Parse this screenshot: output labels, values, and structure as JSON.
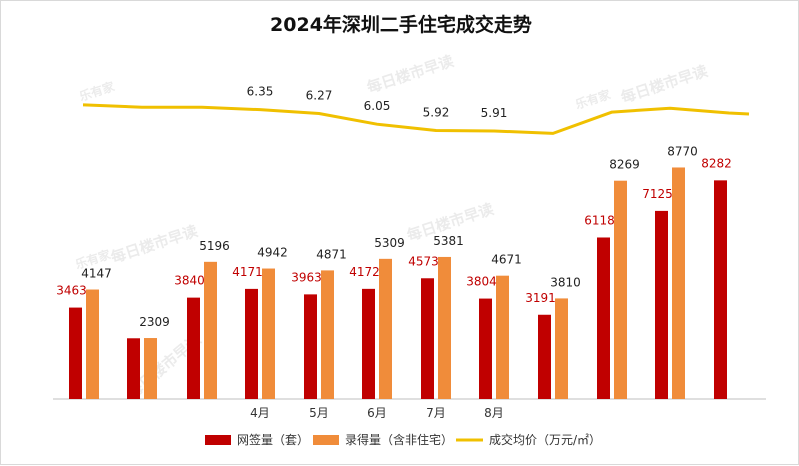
{
  "chart_data": {
    "type": "bar",
    "title": "2024年深圳二手住宅成交走势",
    "categories": [
      "",
      "",
      "",
      "4月",
      "5月",
      "6月",
      "7月",
      "8月",
      "",
      "",
      "",
      ""
    ],
    "series": [
      {
        "name": "网签量（套）",
        "type": "bar",
        "color": "#c00000",
        "values": [
          3463,
          2300,
          3840,
          4171,
          3963,
          4172,
          4573,
          3804,
          3191,
          6118,
          7125,
          8282
        ]
      },
      {
        "name": "录得量（含非住宅）",
        "type": "bar",
        "color": "#f08c3a",
        "values": [
          4147,
          2309,
          5196,
          4942,
          4871,
          5309,
          5381,
          4671,
          3810,
          8269,
          8770,
          null
        ]
      },
      {
        "name": "成交均价（万元/㎡）",
        "type": "line",
        "color": "#f0c000",
        "values": [
          6.45,
          6.4,
          6.4,
          6.35,
          6.27,
          6.05,
          5.92,
          5.91,
          5.86,
          6.3,
          6.38,
          6.28
        ]
      }
    ],
    "bar_labels_series1": [
      "3463",
      "",
      "3840",
      "4171",
      "3963",
      "4172",
      "4573",
      "3804",
      "3191",
      "6118",
      "7125",
      "8282"
    ],
    "bar_labels_series2": [
      "4147",
      "2309",
      "5196",
      "4942",
      "4871",
      "5309",
      "5381",
      "4671",
      "3810",
      "8269",
      "8770",
      ""
    ],
    "line_labels": [
      "",
      "",
      "",
      "6.35",
      "6.27",
      "6.05",
      "5.92",
      "5.91",
      "",
      "",
      "",
      ""
    ],
    "legend_position": "bottom",
    "grid": false,
    "colors": {
      "label_red": "#c00000",
      "label_dark": "#222222",
      "axis": "#bfbfbf"
    }
  },
  "watermark": [
    "每日楼市早读",
    "乐有家"
  ]
}
